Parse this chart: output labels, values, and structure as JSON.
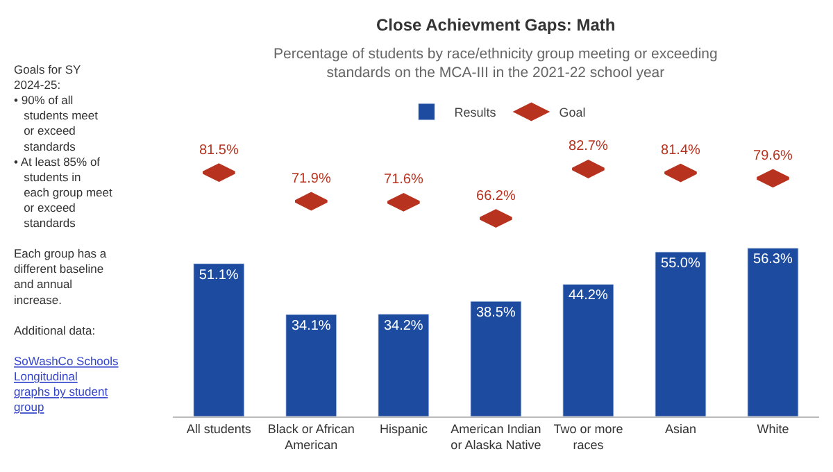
{
  "chart_data": {
    "type": "bar",
    "title": "Close Achievment Gaps: Math",
    "subtitle": "Percentage of students by race/ethnicity group meeting or exceeding standards on the MCA-III in the 2021-22 school year",
    "categories": [
      "All students",
      "Black or African American",
      "Hispanic",
      "American Indian or Alaska Native",
      "Two or more races",
      "Asian",
      "White"
    ],
    "series": [
      {
        "name": "Results",
        "color": "#1c4ba0",
        "values": [
          51.1,
          34.1,
          34.2,
          38.5,
          44.2,
          55.0,
          56.3
        ],
        "value_labels": [
          "51.1%",
          "34.1%",
          "34.2%",
          "38.5%",
          "44.2%",
          "55.0%",
          "56.3%"
        ]
      },
      {
        "name": "Goal",
        "type": "scatter",
        "color": "#b8331f",
        "values": [
          81.5,
          71.9,
          71.6,
          66.2,
          82.7,
          81.4,
          79.6
        ],
        "value_labels": [
          "81.5%",
          "71.9%",
          "71.6%",
          "66.2%",
          "82.7%",
          "81.4%",
          "79.6%"
        ]
      }
    ],
    "legend": "top",
    "grid": false,
    "annotations": [
      "Goals for SY 2024-25:",
      "• 90% of all students meet or exceed standards",
      "• At least 85% of students in each group meet or exceed standards",
      "Each group has a different baseline and annual increase.",
      "Additional data:",
      "SoWashCo Schools Longitudinal graphs by student group"
    ]
  }
}
